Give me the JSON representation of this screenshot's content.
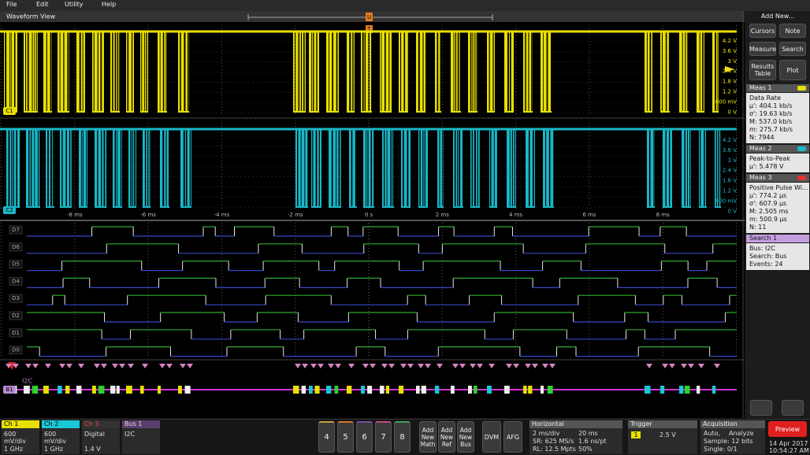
{
  "menu": {
    "items": [
      "File",
      "Edit",
      "Utility",
      "Help"
    ]
  },
  "waveform": {
    "title": "Waveform View",
    "top_marker": "U",
    "trigger_marker": "T",
    "ch1_badge": "C1",
    "ch2_badge": "C2",
    "ch1_scale": [
      "4.2 V",
      "3.6 V",
      "3 V",
      "2.4 V",
      "1.8 V",
      "1.2 V",
      "600 mV",
      "0 V"
    ],
    "ch2_scale": [
      "4.2 V",
      "3.6 V",
      "3 V",
      "2.4 V",
      "1.8 V",
      "1.2 V",
      "600 mV",
      "0 V"
    ],
    "time_axis": [
      "-8 ms",
      "-6 ms",
      "-4 ms",
      "-2 ms",
      "0 s",
      "2 ms",
      "4 ms",
      "6 ms",
      "8 ms"
    ],
    "digital_channels": [
      "D7",
      "D6",
      "D5",
      "D4",
      "D3",
      "D2",
      "D1",
      "D0"
    ],
    "bus_badge": "B1",
    "bus_name": "I2C"
  },
  "side": {
    "title": "Add New...",
    "buttons": [
      "Cursors",
      "Note",
      "Measure",
      "Search",
      "Results Table",
      "Plot"
    ],
    "measurements": [
      {
        "header": "Meas 1",
        "lines": [
          "Data Rate",
          "μ': 404.1 kb/s",
          "σ': 19.63 kb/s",
          "M: 537.0 kb/s",
          "m: 275.7 kb/s",
          "N: 7944"
        ]
      },
      {
        "header": "Meas 2",
        "lines": [
          "Peak-to-Peak",
          "μ': 5.478 V"
        ]
      },
      {
        "header": "Meas 3",
        "lines": [
          "Positive Pulse Wi...",
          "μ': 774.2 μs",
          "σ': 607.9 μs",
          "M: 2.505 ms",
          "m: 500.9 μs",
          "N: 11"
        ]
      }
    ],
    "search": {
      "header": "Search 1",
      "lines": [
        "Bus: I2C",
        "Search: Bus",
        "Events: 24"
      ]
    }
  },
  "status": {
    "channels": [
      {
        "header": "Ch 1",
        "lines": [
          "600 mV/div",
          "1 GHz"
        ]
      },
      {
        "header": "Ch 2",
        "lines": [
          "600 mV/div",
          "1 GHz"
        ]
      },
      {
        "header": "Ch 3",
        "lines": [
          "Digital",
          "1.4 V"
        ]
      },
      {
        "header": "Bus 1",
        "lines": [
          "I2C"
        ]
      }
    ],
    "channel_buttons": [
      "4",
      "5",
      "6",
      "7",
      "8"
    ],
    "add_buttons": [
      "Add New Math",
      "Add New Ref",
      "Add New Bus"
    ],
    "tools": [
      "DVM",
      "AFG"
    ],
    "horizontal": {
      "header": "Horizontal",
      "cells": [
        "2 ms/div",
        "20 ms",
        "SR: 625 MS/s",
        "1.6 ns/pt",
        "RL: 12.5 Mpts",
        "50%"
      ]
    },
    "trigger": {
      "header": "Trigger",
      "source": "1",
      "level": "2.5 V"
    },
    "acquisition": {
      "header": "Acquisition",
      "cells": [
        "Auto,",
        "Analyze",
        "Sample: 12 bits",
        "Single: 0/1"
      ]
    },
    "preview": "Preview",
    "date": "14 Apr 2017",
    "time": "10:54:27 AM"
  }
}
